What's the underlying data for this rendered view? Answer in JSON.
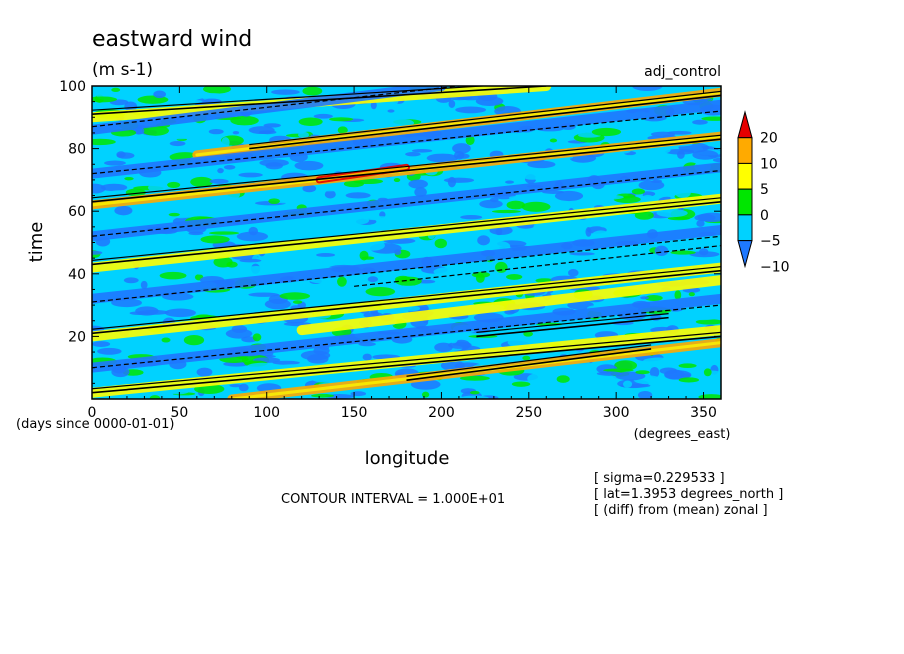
{
  "chart_data": {
    "type": "heatmap",
    "title": "eastward wind",
    "units": "(m s-1)",
    "experiment": "adj_control",
    "xlabel": "longitude",
    "x_units": "(degrees_east)",
    "ylabel": "time",
    "y_units": "(days since 0000-01-01)",
    "xlim": [
      0,
      360
    ],
    "ylim": [
      0,
      100
    ],
    "x_ticks": [
      0,
      50,
      100,
      150,
      200,
      250,
      300,
      350
    ],
    "y_ticks": [
      20,
      40,
      60,
      80,
      100
    ],
    "colorbar": {
      "labels": [
        "20",
        "10",
        "5",
        "0",
        "−5",
        "−10"
      ],
      "levels": [
        -10,
        -5,
        0,
        5,
        10,
        20
      ],
      "colors": [
        "#1e78ff",
        "#00d2ff",
        "#00e600",
        "#ffff00",
        "#ffaa00",
        "#e60000"
      ],
      "extends": "both"
    },
    "contour_interval_text": "CONTOUR INTERVAL = 1.000E+01",
    "info_lines": [
      "[ sigma=0.229533 ]",
      "[ lat=1.3953 degrees_north ]",
      "[ (diff) from (mean) zonal ]"
    ],
    "background_level": -5,
    "description": "Hovmoller diagram of eastward wind anomalies; eastward-propagating streaks tilt upward toward larger longitude",
    "streaks": [
      {
        "lon": [
          0,
          360
        ],
        "t": [
          2,
          22
        ],
        "level": 5
      },
      {
        "lon": [
          0,
          360
        ],
        "t": [
          20,
          42
        ],
        "level": 5
      },
      {
        "lon": [
          0,
          360
        ],
        "t": [
          42,
          64
        ],
        "level": 5
      },
      {
        "lon": [
          0,
          360
        ],
        "t": [
          62,
          84
        ],
        "level": 10
      },
      {
        "lon": [
          60,
          360
        ],
        "t": [
          78,
          98
        ],
        "level": 10
      },
      {
        "lon": [
          0,
          260
        ],
        "t": [
          90,
          100
        ],
        "level": 5
      },
      {
        "lon": [
          80,
          360
        ],
        "t": [
          0,
          18
        ],
        "level": 10
      },
      {
        "lon": [
          120,
          360
        ],
        "t": [
          22,
          38
        ],
        "level": 5
      },
      {
        "lon": [
          130,
          180
        ],
        "t": [
          70,
          74
        ],
        "level": 20
      },
      {
        "lon": [
          0,
          360
        ],
        "t": [
          10,
          32
        ],
        "level": -10
      },
      {
        "lon": [
          0,
          360
        ],
        "t": [
          32,
          54
        ],
        "level": -10
      },
      {
        "lon": [
          0,
          360
        ],
        "t": [
          52,
          74
        ],
        "level": -10
      },
      {
        "lon": [
          0,
          360
        ],
        "t": [
          72,
          94
        ],
        "level": -10
      },
      {
        "lon": [
          0,
          200
        ],
        "t": [
          86,
          100
        ],
        "level": -10
      }
    ],
    "positive_contours": [
      {
        "lon": [
          0,
          360
        ],
        "t": [
          2,
          20
        ]
      },
      {
        "lon": [
          0,
          360
        ],
        "t": [
          21,
          41
        ]
      },
      {
        "lon": [
          0,
          360
        ],
        "t": [
          43,
          63
        ]
      },
      {
        "lon": [
          0,
          360
        ],
        "t": [
          63,
          83
        ]
      },
      {
        "lon": [
          90,
          360
        ],
        "t": [
          80,
          97
        ]
      },
      {
        "lon": [
          0,
          260
        ],
        "t": [
          91,
          100
        ]
      },
      {
        "lon": [
          180,
          320
        ],
        "t": [
          6,
          16
        ]
      },
      {
        "lon": [
          220,
          330
        ],
        "t": [
          20,
          26
        ]
      }
    ],
    "negative_contours": [
      {
        "lon": [
          0,
          360
        ],
        "t": [
          10,
          30
        ]
      },
      {
        "lon": [
          0,
          360
        ],
        "t": [
          31,
          52
        ]
      },
      {
        "lon": [
          0,
          360
        ],
        "t": [
          52,
          73
        ]
      },
      {
        "lon": [
          0,
          360
        ],
        "t": [
          72,
          92
        ]
      },
      {
        "lon": [
          0,
          210
        ],
        "t": [
          87,
          100
        ]
      },
      {
        "lon": [
          150,
          360
        ],
        "t": [
          36,
          49
        ]
      }
    ]
  }
}
